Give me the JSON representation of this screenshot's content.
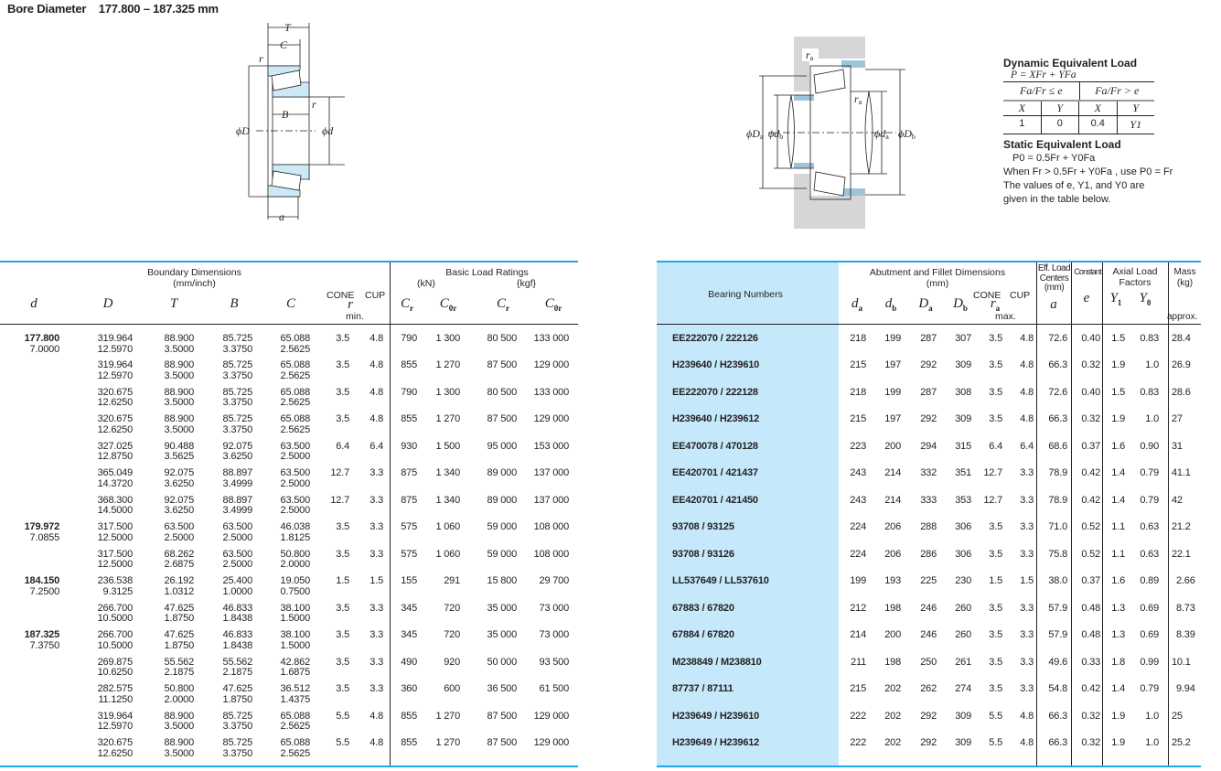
{
  "page_title": {
    "label": "Bore Diameter",
    "range": "177.800 – 187.325 mm"
  },
  "diagram_left": {
    "T": "T",
    "C": "C",
    "r1": "r",
    "r2": "r",
    "B": "B",
    "phiD": "ϕD",
    "phid": "ϕd",
    "a": "a"
  },
  "diagram_right": {
    "ra1": "r",
    "ra1_sub": "a",
    "ra2": "r",
    "ra2_sub": "a",
    "phiDa": "ϕD",
    "phiDa_sub": "a",
    "phidb": "ϕd",
    "phidb_sub": "b",
    "phida": "ϕd",
    "phida_sub": "a",
    "phiDb": "ϕD",
    "phiDb_sub": "b"
  },
  "colors": {
    "rule_blue": "#1ea7e4",
    "bearing_numbers_bg": "#c5e9fb",
    "ring_fill": "#cde8f6",
    "housing_gray": "#d6d6d6"
  },
  "formulas": {
    "dynamic_title": "Dynamic Equivalent Load",
    "dynamic_formula": "P = XFr + YFa",
    "cond1": "Fa/Fr ≤ e",
    "cond2": "Fa/Fr > e",
    "headers": [
      "X",
      "Y",
      "X",
      "Y"
    ],
    "values": [
      "1",
      "0",
      "0.4",
      "Y1"
    ],
    "static_title": "Static Equivalent Load",
    "static_formula": "P0 = 0.5Fr + Y0Fa",
    "static_note": "When Fr > 0.5Fr + Y0Fa , use P0 = Fr",
    "values_note_1": "The values of e, Y1, and Y0 are",
    "values_note_2": "given in the table below."
  },
  "left_table": {
    "group_boundary": "Boundary Dimensions",
    "group_boundary_unit": "(mm/inch)",
    "group_load": "Basic Load Ratings",
    "unit_kn": "(kN)",
    "unit_kgf": "{kgf}",
    "cone": "CONE",
    "cup": "CUP",
    "min": "min.",
    "columns": [
      {
        "s": "d",
        "sub": ""
      },
      {
        "s": "D",
        "sub": ""
      },
      {
        "s": "T",
        "sub": ""
      },
      {
        "s": "B",
        "sub": ""
      },
      {
        "s": "C",
        "sub": ""
      },
      {
        "s": "r",
        "sub": ""
      },
      {
        "s": "C",
        "sub": "r"
      },
      {
        "s": "C",
        "sub": "0r"
      },
      {
        "s": "C",
        "sub": "r"
      },
      {
        "s": "C",
        "sub": "0r"
      }
    ],
    "rows": [
      {
        "d": [
          "177.800",
          "7.0000"
        ],
        "D": [
          "319.964",
          "12.5970"
        ],
        "T": [
          "88.900",
          "3.5000"
        ],
        "B": [
          "85.725",
          "3.3750"
        ],
        "C": [
          "65.088",
          "2.5625"
        ],
        "rc": "3.5",
        "ru": "4.8",
        "Cr": "790",
        "C0r": "1 300",
        "Crk": "80 500",
        "C0rk": "133 000"
      },
      {
        "d": null,
        "D": [
          "319.964",
          "12.5970"
        ],
        "T": [
          "88.900",
          "3.5000"
        ],
        "B": [
          "85.725",
          "3.3750"
        ],
        "C": [
          "65.088",
          "2.5625"
        ],
        "rc": "3.5",
        "ru": "4.8",
        "Cr": "855",
        "C0r": "1 270",
        "Crk": "87 500",
        "C0rk": "129 000"
      },
      {
        "d": null,
        "D": [
          "320.675",
          "12.6250"
        ],
        "T": [
          "88.900",
          "3.5000"
        ],
        "B": [
          "85.725",
          "3.3750"
        ],
        "C": [
          "65.088",
          "2.5625"
        ],
        "rc": "3.5",
        "ru": "4.8",
        "Cr": "790",
        "C0r": "1 300",
        "Crk": "80 500",
        "C0rk": "133 000"
      },
      {
        "d": null,
        "D": [
          "320.675",
          "12.6250"
        ],
        "T": [
          "88.900",
          "3.5000"
        ],
        "B": [
          "85.725",
          "3.3750"
        ],
        "C": [
          "65.088",
          "2.5625"
        ],
        "rc": "3.5",
        "ru": "4.8",
        "Cr": "855",
        "C0r": "1 270",
        "Crk": "87 500",
        "C0rk": "129 000"
      },
      {
        "d": null,
        "D": [
          "327.025",
          "12.8750"
        ],
        "T": [
          "90.488",
          "3.5625"
        ],
        "B": [
          "92.075",
          "3.6250"
        ],
        "C": [
          "63.500",
          "2.5000"
        ],
        "rc": "6.4",
        "ru": "6.4",
        "Cr": "930",
        "C0r": "1 500",
        "Crk": "95 000",
        "C0rk": "153 000"
      },
      {
        "d": null,
        "D": [
          "365.049",
          "14.3720"
        ],
        "T": [
          "92.075",
          "3.6250"
        ],
        "B": [
          "88.897",
          "3.4999"
        ],
        "C": [
          "63.500",
          "2.5000"
        ],
        "rc": "12.7",
        "ru": "3.3",
        "Cr": "875",
        "C0r": "1 340",
        "Crk": "89 000",
        "C0rk": "137 000"
      },
      {
        "d": null,
        "D": [
          "368.300",
          "14.5000"
        ],
        "T": [
          "92.075",
          "3.6250"
        ],
        "B": [
          "88.897",
          "3.4999"
        ],
        "C": [
          "63.500",
          "2.5000"
        ],
        "rc": "12.7",
        "ru": "3.3",
        "Cr": "875",
        "C0r": "1 340",
        "Crk": "89 000",
        "C0rk": "137 000"
      },
      {
        "d": [
          "179.972",
          "7.0855"
        ],
        "D": [
          "317.500",
          "12.5000"
        ],
        "T": [
          "63.500",
          "2.5000"
        ],
        "B": [
          "63.500",
          "2.5000"
        ],
        "C": [
          "46.038",
          "1.8125"
        ],
        "rc": "3.5",
        "ru": "3.3",
        "Cr": "575",
        "C0r": "1 060",
        "Crk": "59 000",
        "C0rk": "108 000"
      },
      {
        "d": null,
        "D": [
          "317.500",
          "12.5000"
        ],
        "T": [
          "68.262",
          "2.6875"
        ],
        "B": [
          "63.500",
          "2.5000"
        ],
        "C": [
          "50.800",
          "2.0000"
        ],
        "rc": "3.5",
        "ru": "3.3",
        "Cr": "575",
        "C0r": "1 060",
        "Crk": "59 000",
        "C0rk": "108 000"
      },
      {
        "d": [
          "184.150",
          "7.2500"
        ],
        "D": [
          "236.538",
          "9.3125"
        ],
        "T": [
          "26.192",
          "1.0312"
        ],
        "B": [
          "25.400",
          "1.0000"
        ],
        "C": [
          "19.050",
          "0.7500"
        ],
        "rc": "1.5",
        "ru": "1.5",
        "Cr": "155",
        "C0r": "291",
        "Crk": "15 800",
        "C0rk": "29 700"
      },
      {
        "d": null,
        "D": [
          "266.700",
          "10.5000"
        ],
        "T": [
          "47.625",
          "1.8750"
        ],
        "B": [
          "46.833",
          "1.8438"
        ],
        "C": [
          "38.100",
          "1.5000"
        ],
        "rc": "3.5",
        "ru": "3.3",
        "Cr": "345",
        "C0r": "720",
        "Crk": "35 000",
        "C0rk": "73 000"
      },
      {
        "d": [
          "187.325",
          "7.3750"
        ],
        "D": [
          "266.700",
          "10.5000"
        ],
        "T": [
          "47.625",
          "1.8750"
        ],
        "B": [
          "46.833",
          "1.8438"
        ],
        "C": [
          "38.100",
          "1.5000"
        ],
        "rc": "3.5",
        "ru": "3.3",
        "Cr": "345",
        "C0r": "720",
        "Crk": "35 000",
        "C0rk": "73 000"
      },
      {
        "d": null,
        "D": [
          "269.875",
          "10.6250"
        ],
        "T": [
          "55.562",
          "2.1875"
        ],
        "B": [
          "55.562",
          "2.1875"
        ],
        "C": [
          "42.862",
          "1.6875"
        ],
        "rc": "3.5",
        "ru": "3.3",
        "Cr": "490",
        "C0r": "920",
        "Crk": "50 000",
        "C0rk": "93 500"
      },
      {
        "d": null,
        "D": [
          "282.575",
          "11.1250"
        ],
        "T": [
          "50.800",
          "2.0000"
        ],
        "B": [
          "47.625",
          "1.8750"
        ],
        "C": [
          "36.512",
          "1.4375"
        ],
        "rc": "3.5",
        "ru": "3.3",
        "Cr": "360",
        "C0r": "600",
        "Crk": "36 500",
        "C0rk": "61 500"
      },
      {
        "d": null,
        "D": [
          "319.964",
          "12.5970"
        ],
        "T": [
          "88.900",
          "3.5000"
        ],
        "B": [
          "85.725",
          "3.3750"
        ],
        "C": [
          "65.088",
          "2.5625"
        ],
        "rc": "5.5",
        "ru": "4.8",
        "Cr": "855",
        "C0r": "1 270",
        "Crk": "87 500",
        "C0rk": "129 000"
      },
      {
        "d": null,
        "D": [
          "320.675",
          "12.6250"
        ],
        "T": [
          "88.900",
          "3.5000"
        ],
        "B": [
          "85.725",
          "3.3750"
        ],
        "C": [
          "65.088",
          "2.5625"
        ],
        "rc": "5.5",
        "ru": "4.8",
        "Cr": "855",
        "C0r": "1 270",
        "Crk": "87 500",
        "C0rk": "129 000"
      }
    ]
  },
  "right_table": {
    "bearing_numbers": "Bearing Numbers",
    "group_abutment": "Abutment and Fillet Dimensions",
    "group_abutment_unit": "(mm)",
    "eff_load_1": "Eff. Load",
    "eff_load_2": "Centers",
    "eff_load_3": "(mm)",
    "constant": "Constant",
    "axial_1": "Axial Load",
    "axial_2": "Factors",
    "mass_1": "Mass",
    "mass_2": "(kg)",
    "approx": "approx.",
    "cone": "CONE",
    "cup": "CUP",
    "max": "max.",
    "columns": [
      {
        "s": "d",
        "sub": "a"
      },
      {
        "s": "d",
        "sub": "b"
      },
      {
        "s": "D",
        "sub": "a"
      },
      {
        "s": "D",
        "sub": "b"
      },
      {
        "s": "r",
        "sub": "a"
      },
      {
        "s": "a",
        "sub": ""
      },
      {
        "s": "e",
        "sub": ""
      },
      {
        "s": "Y",
        "sub": "1"
      },
      {
        "s": "Y",
        "sub": "0"
      }
    ],
    "rows": [
      [
        "EE222070 / 222126",
        "218",
        "199",
        "287",
        "307",
        "3.5",
        "4.8",
        "72.6",
        "0.40",
        "1.5",
        "0.83",
        "28.4"
      ],
      [
        "H239640 / H239610",
        "215",
        "197",
        "292",
        "309",
        "3.5",
        "4.8",
        "66.3",
        "0.32",
        "1.9",
        "1.0",
        "26.9"
      ],
      [
        "EE222070 / 222128",
        "218",
        "199",
        "287",
        "308",
        "3.5",
        "4.8",
        "72.6",
        "0.40",
        "1.5",
        "0.83",
        "28.6"
      ],
      [
        "H239640 / H239612",
        "215",
        "197",
        "292",
        "309",
        "3.5",
        "4.8",
        "66.3",
        "0.32",
        "1.9",
        "1.0",
        "27"
      ],
      [
        "EE470078 / 470128",
        "223",
        "200",
        "294",
        "315",
        "6.4",
        "6.4",
        "68.6",
        "0.37",
        "1.6",
        "0.90",
        "31"
      ],
      [
        "EE420701 / 421437",
        "243",
        "214",
        "332",
        "351",
        "12.7",
        "3.3",
        "78.9",
        "0.42",
        "1.4",
        "0.79",
        "41.1"
      ],
      [
        "EE420701 / 421450",
        "243",
        "214",
        "333",
        "353",
        "12.7",
        "3.3",
        "78.9",
        "0.42",
        "1.4",
        "0.79",
        "42"
      ],
      [
        "93708 / 93125",
        "224",
        "206",
        "288",
        "306",
        "3.5",
        "3.3",
        "71.0",
        "0.52",
        "1.1",
        "0.63",
        "21.2"
      ],
      [
        "93708 / 93126",
        "224",
        "206",
        "286",
        "306",
        "3.5",
        "3.3",
        "75.8",
        "0.52",
        "1.1",
        "0.63",
        "22.1"
      ],
      [
        "LL537649 / LL537610",
        "199",
        "193",
        "225",
        "230",
        "1.5",
        "1.5",
        "38.0",
        "0.37",
        "1.6",
        "0.89",
        "2.66"
      ],
      [
        "67883 / 67820",
        "212",
        "198",
        "246",
        "260",
        "3.5",
        "3.3",
        "57.9",
        "0.48",
        "1.3",
        "0.69",
        "8.73"
      ],
      [
        "67884 / 67820",
        "214",
        "200",
        "246",
        "260",
        "3.5",
        "3.3",
        "57.9",
        "0.48",
        "1.3",
        "0.69",
        "8.39"
      ],
      [
        "M238849 / M238810",
        "211",
        "198",
        "250",
        "261",
        "3.5",
        "3.3",
        "49.6",
        "0.33",
        "1.8",
        "0.99",
        "10.1"
      ],
      [
        "87737 / 87111",
        "215",
        "202",
        "262",
        "274",
        "3.5",
        "3.3",
        "54.8",
        "0.42",
        "1.4",
        "0.79",
        "9.94"
      ],
      [
        "H239649 / H239610",
        "222",
        "202",
        "292",
        "309",
        "5.5",
        "4.8",
        "66.3",
        "0.32",
        "1.9",
        "1.0",
        "25"
      ],
      [
        "H239649 / H239612",
        "222",
        "202",
        "292",
        "309",
        "5.5",
        "4.8",
        "66.3",
        "0.32",
        "1.9",
        "1.0",
        "25.2"
      ]
    ]
  }
}
